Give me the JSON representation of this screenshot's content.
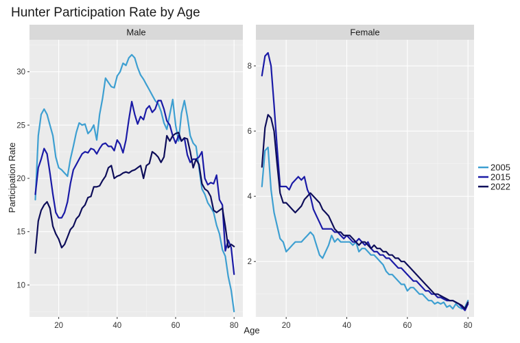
{
  "chart_data": {
    "type": "line",
    "title": "Hunter Participation Rate by Age",
    "xlabel": "Age",
    "ylabel": "Participation Rate",
    "legend_position": "right",
    "grid": true,
    "series_styles": [
      {
        "name": "2005",
        "color": "#3d9fd1"
      },
      {
        "name": "2015",
        "color": "#1a1aa6"
      },
      {
        "name": "2022",
        "color": "#0d0d59"
      }
    ],
    "panels": [
      {
        "facet": "Male",
        "xlim": [
          10,
          83
        ],
        "ylim": [
          7,
          33
        ],
        "xticks": [
          20,
          40,
          60,
          80
        ],
        "yticks": [
          10,
          15,
          20,
          25,
          30
        ],
        "series": [
          {
            "name": "2005",
            "x": [
              12,
              13,
              14,
              15,
              16,
              17,
              18,
              19,
              20,
              21,
              22,
              23,
              24,
              25,
              26,
              27,
              28,
              29,
              30,
              31,
              32,
              33,
              34,
              35,
              36,
              37,
              38,
              39,
              40,
              41,
              42,
              43,
              44,
              45,
              46,
              47,
              48,
              49,
              50,
              51,
              52,
              53,
              54,
              55,
              56,
              57,
              58,
              59,
              60,
              61,
              62,
              63,
              64,
              65,
              66,
              67,
              68,
              69,
              70,
              71,
              72,
              73,
              74,
              75,
              76,
              77,
              78,
              79,
              80
            ],
            "y": [
              18,
              24,
              26,
              26.5,
              26,
              25,
              24,
              22,
              21,
              20.8,
              20.5,
              20.2,
              21.8,
              23,
              24.3,
              25.2,
              25,
              25.1,
              24.2,
              24.5,
              25,
              23.6,
              26,
              27.5,
              29.4,
              29,
              28.6,
              28.5,
              29.6,
              30,
              30.8,
              30.6,
              31.3,
              31.6,
              31.3,
              30.4,
              29.7,
              29.3,
              28.8,
              28.3,
              27.8,
              27.3,
              27,
              26.3,
              25.2,
              24.6,
              26,
              27.4,
              25,
              23.5,
              26.1,
              27.3,
              25.8,
              24,
              23.3,
              23,
              21,
              19,
              18.5,
              17.7,
              17.3,
              16.8,
              15.6,
              14.8,
              13.3,
              12.7,
              10.8,
              9.5,
              7.5
            ]
          },
          {
            "name": "2015",
            "x": [
              12,
              13,
              14,
              15,
              16,
              17,
              18,
              19,
              20,
              21,
              22,
              23,
              24,
              25,
              26,
              27,
              28,
              29,
              30,
              31,
              32,
              33,
              34,
              35,
              36,
              37,
              38,
              39,
              40,
              41,
              42,
              43,
              44,
              45,
              46,
              47,
              48,
              49,
              50,
              51,
              52,
              53,
              54,
              55,
              56,
              57,
              58,
              59,
              60,
              61,
              62,
              63,
              64,
              65,
              66,
              67,
              68,
              69,
              70,
              71,
              72,
              73,
              74,
              75,
              76,
              77,
              78,
              79,
              80
            ],
            "y": [
              18.5,
              21,
              21.8,
              22.8,
              22.3,
              20.5,
              18.5,
              16.8,
              16.3,
              16.3,
              16.8,
              17.8,
              19.5,
              20.8,
              21.3,
              21.8,
              22.3,
              22.5,
              22.4,
              22.8,
              22.7,
              22.3,
              22.8,
              23.2,
              23.3,
              23,
              23,
              22.6,
              23.6,
              23.2,
              22.4,
              23.6,
              25.5,
              27.2,
              26,
              25.1,
              25.8,
              25.5,
              26.5,
              26.8,
              26.2,
              26.5,
              27.3,
              27.3,
              26.5,
              25.4,
              25,
              24,
              23.3,
              24,
              23.5,
              23.8,
              22.2,
              21.5,
              21.8,
              21.8,
              22,
              22.5,
              20,
              19.4,
              19.6,
              19.5,
              20.3,
              18,
              17.5,
              13.2,
              14.2,
              13.5,
              11
            ]
          },
          {
            "name": "2022",
            "x": [
              12,
              13,
              14,
              15,
              16,
              17,
              18,
              19,
              20,
              21,
              22,
              23,
              24,
              25,
              26,
              27,
              28,
              29,
              30,
              31,
              32,
              33,
              34,
              35,
              36,
              37,
              38,
              39,
              40,
              41,
              42,
              43,
              44,
              45,
              46,
              47,
              48,
              49,
              50,
              51,
              52,
              53,
              54,
              55,
              56,
              57,
              58,
              59,
              60,
              61,
              62,
              63,
              64,
              65,
              66,
              67,
              68,
              69,
              70,
              71,
              72,
              73,
              74,
              75,
              76,
              77,
              78,
              79,
              80
            ],
            "y": [
              13,
              16,
              17,
              17.5,
              17.8,
              17.2,
              15.5,
              14.8,
              14.3,
              13.5,
              13.8,
              14.5,
              15.2,
              15.5,
              16.2,
              16.5,
              17.2,
              17.5,
              18.2,
              18.3,
              19.2,
              19.2,
              19.3,
              19.8,
              20.2,
              21,
              21.2,
              20,
              20.2,
              20.3,
              20.5,
              20.6,
              20.5,
              20.7,
              20.8,
              21,
              21.2,
              20,
              21.2,
              21.4,
              22.5,
              22.3,
              22,
              21.5,
              22,
              24,
              23.5,
              24,
              24.2,
              24.3,
              23.5,
              23.8,
              23.7,
              22.5,
              21,
              21.8,
              21.3,
              19.5,
              19,
              18.8,
              18.3,
              17,
              16.8,
              17,
              17.2,
              15.5,
              13.5,
              13.8,
              13.6
            ]
          }
        ]
      },
      {
        "facet": "Female",
        "xlim": [
          10,
          82
        ],
        "ylim": [
          0.3,
          8.8
        ],
        "xticks": [
          20,
          40,
          60,
          80
        ],
        "yticks": [
          2,
          4,
          6,
          8
        ],
        "series": [
          {
            "name": "2005",
            "x": [
              12,
              13,
              14,
              15,
              16,
              17,
              18,
              19,
              20,
              21,
              22,
              23,
              24,
              25,
              26,
              27,
              28,
              29,
              30,
              31,
              32,
              33,
              34,
              35,
              36,
              37,
              38,
              39,
              40,
              41,
              42,
              43,
              44,
              45,
              46,
              47,
              48,
              49,
              50,
              51,
              52,
              53,
              54,
              55,
              56,
              57,
              58,
              59,
              60,
              61,
              62,
              63,
              64,
              65,
              66,
              67,
              68,
              69,
              70,
              71,
              72,
              73,
              74,
              75,
              76,
              77,
              78,
              79,
              80
            ],
            "y": [
              4.3,
              5.4,
              5.5,
              4.2,
              3.5,
              3.1,
              2.7,
              2.6,
              2.3,
              2.4,
              2.5,
              2.6,
              2.6,
              2.6,
              2.7,
              2.8,
              2.9,
              2.8,
              2.5,
              2.2,
              2.1,
              2.3,
              2.5,
              2.8,
              2.6,
              2.7,
              2.6,
              2.6,
              2.6,
              2.6,
              2.5,
              2.6,
              2.3,
              2.4,
              2.4,
              2.3,
              2.2,
              2.2,
              2.1,
              2.0,
              1.9,
              1.7,
              1.6,
              1.6,
              1.5,
              1.4,
              1.3,
              1.3,
              1.1,
              1.2,
              1.2,
              1.1,
              1.0,
              1.0,
              0.9,
              0.8,
              0.8,
              0.7,
              0.75,
              0.7,
              0.75,
              0.6,
              0.65,
              0.55,
              0.7,
              0.6,
              0.55,
              0.6,
              0.8
            ]
          },
          {
            "name": "2015",
            "x": [
              12,
              13,
              14,
              15,
              16,
              17,
              18,
              19,
              20,
              21,
              22,
              23,
              24,
              25,
              26,
              27,
              28,
              29,
              30,
              31,
              32,
              33,
              34,
              35,
              36,
              37,
              38,
              39,
              40,
              41,
              42,
              43,
              44,
              45,
              46,
              47,
              48,
              49,
              50,
              51,
              52,
              53,
              54,
              55,
              56,
              57,
              58,
              59,
              60,
              61,
              62,
              63,
              64,
              65,
              66,
              67,
              68,
              69,
              70,
              71,
              72,
              73,
              74,
              75,
              76,
              77,
              78,
              79,
              80
            ],
            "y": [
              7.7,
              8.3,
              8.4,
              8.0,
              6.8,
              5.5,
              4.3,
              4.3,
              4.3,
              4.2,
              4.4,
              4.5,
              4.6,
              4.5,
              4.6,
              4.2,
              4.0,
              3.6,
              3.4,
              3.2,
              3.0,
              3.0,
              3.0,
              3.0,
              2.9,
              2.9,
              2.8,
              2.7,
              2.8,
              2.7,
              2.6,
              2.6,
              2.7,
              2.6,
              2.5,
              2.6,
              2.4,
              2.3,
              2.3,
              2.2,
              2.2,
              2.1,
              2.1,
              2.0,
              1.9,
              1.8,
              1.8,
              1.7,
              1.6,
              1.5,
              1.4,
              1.4,
              1.3,
              1.2,
              1.1,
              1.1,
              1.0,
              1.0,
              0.9,
              0.9,
              0.85,
              0.8,
              0.8,
              0.8,
              0.75,
              0.7,
              0.6,
              0.5,
              0.7
            ]
          },
          {
            "name": "2022",
            "x": [
              12,
              13,
              14,
              15,
              16,
              17,
              18,
              19,
              20,
              21,
              22,
              23,
              24,
              25,
              26,
              27,
              28,
              29,
              30,
              31,
              32,
              33,
              34,
              35,
              36,
              37,
              38,
              39,
              40,
              41,
              42,
              43,
              44,
              45,
              46,
              47,
              48,
              49,
              50,
              51,
              52,
              53,
              54,
              55,
              56,
              57,
              58,
              59,
              60,
              61,
              62,
              63,
              64,
              65,
              66,
              67,
              68,
              69,
              70,
              71,
              72,
              73,
              74,
              75,
              76,
              77,
              78,
              79,
              80
            ],
            "y": [
              4.9,
              6.1,
              6.5,
              6.4,
              6.0,
              5.0,
              4.1,
              3.8,
              3.8,
              3.7,
              3.6,
              3.5,
              3.6,
              3.7,
              3.9,
              4.0,
              4.1,
              4.0,
              3.9,
              3.8,
              3.6,
              3.5,
              3.4,
              3.2,
              3.0,
              2.9,
              2.9,
              2.8,
              2.8,
              2.8,
              2.7,
              2.6,
              2.5,
              2.6,
              2.6,
              2.5,
              2.4,
              2.5,
              2.4,
              2.4,
              2.3,
              2.3,
              2.2,
              2.2,
              2.1,
              2.1,
              2.0,
              2.0,
              1.9,
              1.8,
              1.7,
              1.6,
              1.5,
              1.4,
              1.3,
              1.2,
              1.1,
              1.0,
              1.0,
              0.95,
              0.9,
              0.85,
              0.8,
              0.8,
              0.75,
              0.7,
              0.65,
              0.55,
              0.75
            ]
          }
        ]
      }
    ]
  }
}
